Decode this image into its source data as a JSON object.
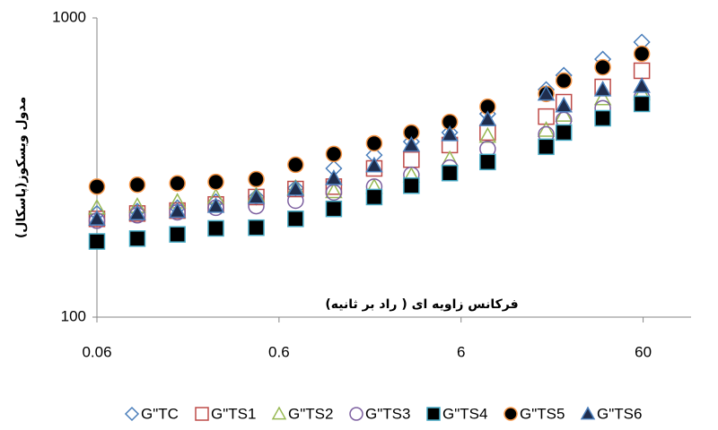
{
  "chart_data": {
    "type": "scatter",
    "xlabel": "فرکانس زاویه ای ( راد بر ثانیه)",
    "ylabel": "مدول ویسکوز(پاسکال)",
    "x": [
      0.06,
      0.1,
      0.166,
      0.27,
      0.45,
      0.74,
      1.2,
      2,
      3.2,
      5.2,
      8.4,
      17.6,
      22,
      36,
      59
    ],
    "xlim": [
      0.06,
      110
    ],
    "ylim": [
      100,
      1000
    ],
    "xticks": [
      0.06,
      0.6,
      6,
      60
    ],
    "yticks": [
      100,
      1000
    ],
    "xscale": "log",
    "yscale": "log",
    "grid": false,
    "legend": "bottom",
    "series": [
      {
        "name": "G\"TC",
        "marker": "diamond",
        "color": "#4a7ebb",
        "fill": "none",
        "values": [
          222,
          226,
          232,
          243,
          252,
          270,
          314,
          348,
          386,
          414,
          478,
          576,
          643,
          728,
          830
        ]
      },
      {
        "name": "G\"TS1",
        "marker": "square",
        "color": "#be4b48",
        "fill": "none",
        "values": [
          213,
          222,
          227,
          238,
          252,
          268,
          273,
          314,
          336,
          376,
          414,
          468,
          523,
          588,
          666
        ]
      },
      {
        "name": "G\"TS2",
        "marker": "triangle",
        "color": "#98b954",
        "fill": "none",
        "values": [
          232,
          235,
          243,
          252,
          255,
          270,
          263,
          272,
          297,
          337,
          403,
          422,
          474,
          538,
          560
        ]
      },
      {
        "name": "G\"TS3",
        "marker": "circle",
        "color": "#7d60a0",
        "fill": "none",
        "values": [
          210,
          219,
          224,
          232,
          235,
          245,
          261,
          273,
          299,
          316,
          365,
          408,
          456,
          499,
          542
        ]
      },
      {
        "name": "G\"TS4",
        "marker": "square",
        "color": "#46aac5",
        "fill": "#000000",
        "values": [
          179,
          183,
          189,
          198,
          199,
          213,
          230,
          252,
          275,
          303,
          330,
          371,
          414,
          462,
          516
        ]
      },
      {
        "name": "G\"TS5",
        "marker": "circle",
        "color": "#f79646",
        "fill": "#000000",
        "values": [
          273,
          277,
          280,
          283,
          289,
          323,
          351,
          381,
          414,
          449,
          505,
          557,
          617,
          684,
          759
        ]
      },
      {
        "name": "G\"TS6",
        "marker": "triangle",
        "color": "#4a7ebb",
        "fill": "#1f2d4d",
        "values": [
          213,
          222,
          226,
          235,
          252,
          268,
          291,
          321,
          376,
          408,
          458,
          557,
          509,
          576,
          592
        ]
      }
    ]
  }
}
